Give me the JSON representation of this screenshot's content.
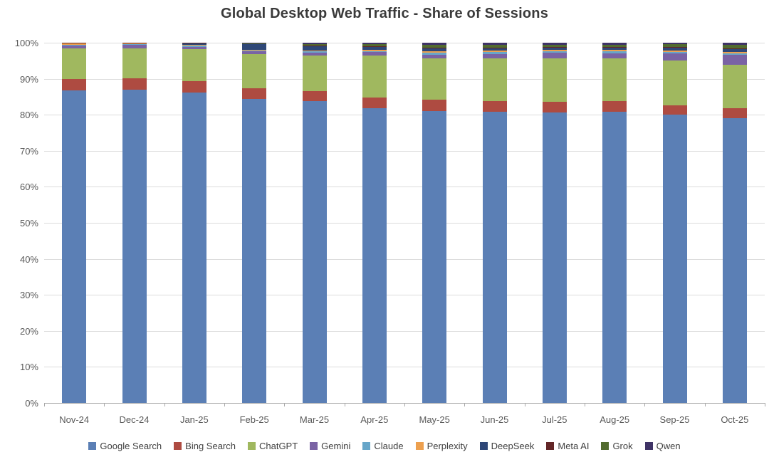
{
  "chart_data": {
    "type": "bar",
    "stacked": true,
    "stacked_100_percent": true,
    "title": "Global Desktop Web Traffic - Share of Sessions",
    "xlabel": "",
    "ylabel": "",
    "ylim": [
      0,
      100
    ],
    "yticks": [
      0,
      10,
      20,
      30,
      40,
      50,
      60,
      70,
      80,
      90,
      100
    ],
    "ytick_labels": [
      "0%",
      "10%",
      "20%",
      "30%",
      "40%",
      "50%",
      "60%",
      "70%",
      "80%",
      "90%",
      "100%"
    ],
    "grid": true,
    "legend_position": "bottom",
    "categories": [
      "Nov-24",
      "Dec-24",
      "Jan-25",
      "Feb-25",
      "Mar-25",
      "Apr-25",
      "May-25",
      "Jun-25",
      "Jul-25",
      "Aug-25",
      "Sep-25",
      "Oct-25"
    ],
    "series": [
      {
        "name": "Google Search",
        "color": "#5B7FB5",
        "values": [
          86.7,
          87.0,
          86.2,
          84.3,
          83.7,
          81.9,
          81.1,
          80.9,
          80.7,
          80.9,
          80.1,
          79.0
        ]
      },
      {
        "name": "Bing Search",
        "color": "#AE4B41",
        "values": [
          3.3,
          3.2,
          3.2,
          3.1,
          2.9,
          2.9,
          3.0,
          2.8,
          2.8,
          2.8,
          2.6,
          2.9
        ]
      },
      {
        "name": "ChatGPT",
        "color": "#A0B85F",
        "values": [
          8.5,
          8.3,
          8.8,
          9.4,
          9.9,
          11.6,
          11.6,
          12.0,
          12.2,
          11.9,
          12.3,
          11.9
        ]
      },
      {
        "name": "Gemini",
        "color": "#7A63A4",
        "values": [
          0.8,
          0.9,
          0.7,
          0.8,
          0.8,
          1.0,
          1.0,
          1.2,
          1.5,
          1.5,
          2.0,
          2.8
        ]
      },
      {
        "name": "Claude",
        "color": "#67A6C9",
        "values": [
          0.2,
          0.2,
          0.3,
          0.3,
          0.3,
          0.3,
          0.5,
          0.5,
          0.4,
          0.5,
          0.5,
          0.4
        ]
      },
      {
        "name": "Perplexity",
        "color": "#EDA04F",
        "values": [
          0.4,
          0.3,
          0.2,
          0.2,
          0.3,
          0.4,
          0.4,
          0.4,
          0.4,
          0.4,
          0.3,
          0.4
        ]
      },
      {
        "name": "DeepSeek",
        "color": "#2E4777",
        "values": [
          0.0,
          0.0,
          0.5,
          1.6,
          1.2,
          0.9,
          0.9,
          0.8,
          0.6,
          0.6,
          0.8,
          0.8
        ]
      },
      {
        "name": "Meta AI",
        "color": "#632627",
        "values": [
          0.1,
          0.1,
          0.1,
          0.1,
          0.1,
          0.1,
          0.1,
          0.1,
          0.2,
          0.2,
          0.2,
          0.2
        ]
      },
      {
        "name": "Grok",
        "color": "#526B2F",
        "values": [
          0.0,
          0.0,
          0.0,
          0.1,
          0.4,
          0.6,
          0.8,
          0.7,
          0.7,
          0.7,
          0.8,
          1.0
        ]
      },
      {
        "name": "Qwen",
        "color": "#3F3366",
        "values": [
          0.0,
          0.0,
          0.0,
          0.1,
          0.4,
          0.3,
          0.6,
          0.6,
          0.5,
          0.5,
          0.4,
          0.6
        ]
      }
    ]
  },
  "colors": {
    "background": "#FFFFFF",
    "gridline": "#DCDCDC",
    "axis_line": "#A9A9A9",
    "title_text": "#3A3A3A",
    "tick_text": "#595959",
    "legend_text": "#404040"
  }
}
